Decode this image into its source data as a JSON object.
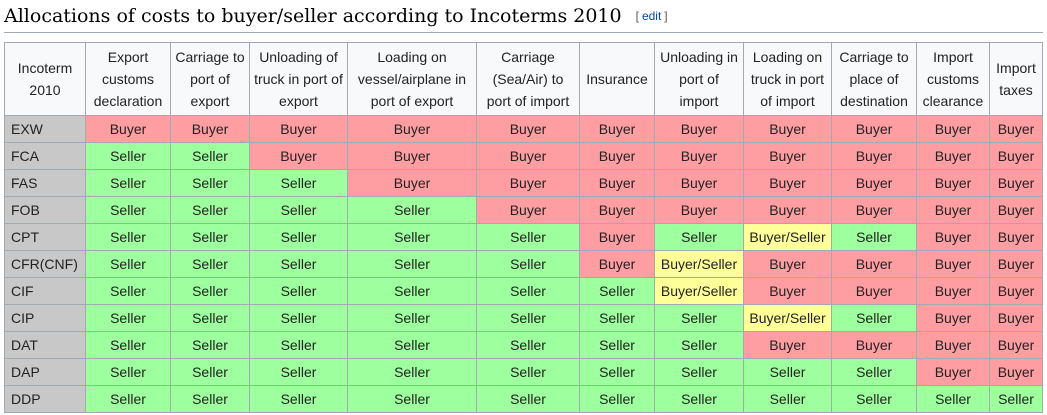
{
  "heading": {
    "title": "Allocations of costs to buyer/seller according to Incoterms 2010",
    "edit_open": "[",
    "edit_label": "edit",
    "edit_close": "]"
  },
  "colors": {
    "buyer": "#ff9ea2",
    "seller": "#9eff9e",
    "buyer_seller": "#ffff99",
    "term_cell": "#c8c8c8",
    "header": "#f8f9fa"
  },
  "table": {
    "columns": [
      "Incoterm 2010",
      "Export customs declaration",
      "Carriage to port of export",
      "Unloading of truck in port of export",
      "Loading on vessel/airplane in port of export",
      "Carriage (Sea/Air) to port of import",
      "Insurance",
      "Unloading in port of import",
      "Loading on truck in port of import",
      "Carriage to place of destination",
      "Import customs clearance",
      "Import taxes"
    ],
    "rows": [
      {
        "term": "EXW",
        "cells": [
          "Buyer",
          "Buyer",
          "Buyer",
          "Buyer",
          "Buyer",
          "Buyer",
          "Buyer",
          "Buyer",
          "Buyer",
          "Buyer",
          "Buyer"
        ]
      },
      {
        "term": "FCA",
        "cells": [
          "Seller",
          "Seller",
          "Buyer",
          "Buyer",
          "Buyer",
          "Buyer",
          "Buyer",
          "Buyer",
          "Buyer",
          "Buyer",
          "Buyer"
        ]
      },
      {
        "term": "FAS",
        "cells": [
          "Seller",
          "Seller",
          "Seller",
          "Buyer",
          "Buyer",
          "Buyer",
          "Buyer",
          "Buyer",
          "Buyer",
          "Buyer",
          "Buyer"
        ]
      },
      {
        "term": "FOB",
        "cells": [
          "Seller",
          "Seller",
          "Seller",
          "Seller",
          "Buyer",
          "Buyer",
          "Buyer",
          "Buyer",
          "Buyer",
          "Buyer",
          "Buyer"
        ]
      },
      {
        "term": "CPT",
        "cells": [
          "Seller",
          "Seller",
          "Seller",
          "Seller",
          "Seller",
          "Buyer",
          "Seller",
          "Buyer/Seller",
          "Seller",
          "Buyer",
          "Buyer"
        ]
      },
      {
        "term": "CFR(CNF)",
        "cells": [
          "Seller",
          "Seller",
          "Seller",
          "Seller",
          "Seller",
          "Buyer",
          "Buyer/Seller",
          "Buyer",
          "Buyer",
          "Buyer",
          "Buyer"
        ]
      },
      {
        "term": "CIF",
        "cells": [
          "Seller",
          "Seller",
          "Seller",
          "Seller",
          "Seller",
          "Seller",
          "Buyer/Seller",
          "Buyer",
          "Buyer",
          "Buyer",
          "Buyer"
        ]
      },
      {
        "term": "CIP",
        "cells": [
          "Seller",
          "Seller",
          "Seller",
          "Seller",
          "Seller",
          "Seller",
          "Seller",
          "Buyer/Seller",
          "Seller",
          "Buyer",
          "Buyer"
        ]
      },
      {
        "term": "DAT",
        "cells": [
          "Seller",
          "Seller",
          "Seller",
          "Seller",
          "Seller",
          "Seller",
          "Seller",
          "Buyer",
          "Buyer",
          "Buyer",
          "Buyer"
        ]
      },
      {
        "term": "DAP",
        "cells": [
          "Seller",
          "Seller",
          "Seller",
          "Seller",
          "Seller",
          "Seller",
          "Seller",
          "Seller",
          "Seller",
          "Buyer",
          "Buyer"
        ]
      },
      {
        "term": "DDP",
        "cells": [
          "Seller",
          "Seller",
          "Seller",
          "Seller",
          "Seller",
          "Seller",
          "Seller",
          "Seller",
          "Seller",
          "Seller",
          "Seller"
        ]
      }
    ]
  }
}
